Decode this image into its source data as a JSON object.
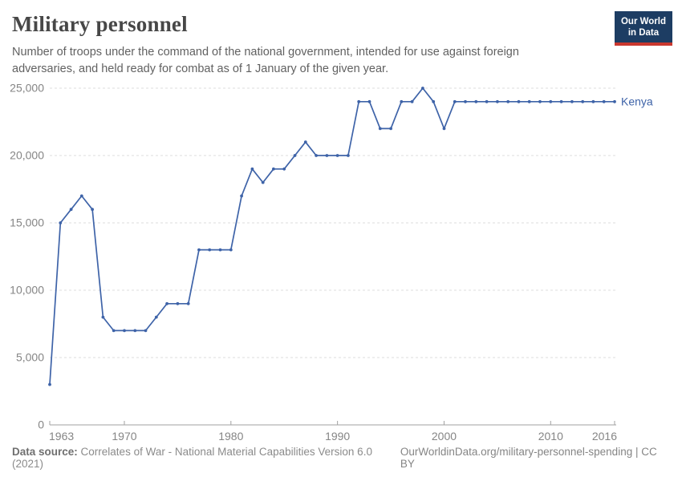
{
  "header": {
    "title": "Military personnel",
    "subtitle": "Number of troops under the command of the national government, intended for use against foreign adversaries, and held ready for combat as of 1 January of the given year.",
    "logo": {
      "line1": "Our World",
      "line2": "in Data"
    }
  },
  "colors": {
    "series_blue": "#3e63a8",
    "logo_navy": "#1d3d63",
    "logo_red": "#c9372e"
  },
  "chart_data": {
    "type": "line",
    "title": "Military personnel",
    "xlabel": "",
    "ylabel": "",
    "xlim": [
      1963,
      2016
    ],
    "ylim": [
      0,
      25000
    ],
    "x_ticks": [
      1963,
      1970,
      1980,
      1990,
      2000,
      2010,
      2016
    ],
    "y_ticks": [
      0,
      5000,
      10000,
      15000,
      20000,
      25000
    ],
    "grid": "horizontal-dashed",
    "legend_position": "line-end-label",
    "series": [
      {
        "name": "Kenya",
        "color": "#3e63a8",
        "x": [
          1963,
          1964,
          1965,
          1966,
          1967,
          1968,
          1969,
          1970,
          1971,
          1972,
          1973,
          1974,
          1975,
          1976,
          1977,
          1978,
          1979,
          1980,
          1981,
          1982,
          1983,
          1984,
          1985,
          1986,
          1987,
          1988,
          1989,
          1990,
          1991,
          1992,
          1993,
          1994,
          1995,
          1996,
          1997,
          1998,
          1999,
          2000,
          2001,
          2002,
          2003,
          2004,
          2005,
          2006,
          2007,
          2008,
          2009,
          2010,
          2011,
          2012,
          2013,
          2014,
          2015,
          2016
        ],
        "values": [
          3000,
          15000,
          16000,
          17000,
          16000,
          8000,
          7000,
          7000,
          7000,
          7000,
          8000,
          9000,
          9000,
          9000,
          13000,
          13000,
          13000,
          13000,
          17000,
          19000,
          18000,
          19000,
          19000,
          20000,
          21000,
          20000,
          20000,
          20000,
          20000,
          24000,
          24000,
          22000,
          22000,
          24000,
          24000,
          25000,
          24000,
          22000,
          24000,
          24000,
          24000,
          24000,
          24000,
          24000,
          24000,
          24000,
          24000,
          24000,
          24000,
          24000,
          24000,
          24000,
          24000,
          24000
        ]
      }
    ]
  },
  "footer": {
    "source_label": "Data source:",
    "source_text": "Correlates of War - National Material Capabilities Version 6.0 (2021)",
    "link_text": "OurWorldinData.org/military-personnel-spending | CC BY"
  }
}
